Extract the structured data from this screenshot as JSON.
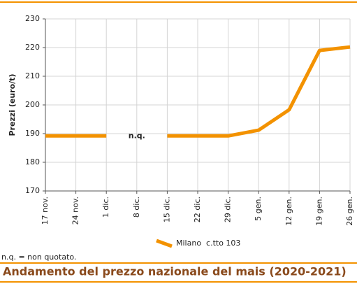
{
  "chart_data": {
    "type": "line",
    "title": "Andamento del prezzo nazionale del mais (2020-2021)",
    "y_label": "Prezzi (euro/t)",
    "note": "n.q. = non quotato.",
    "annotation": "n.q.",
    "categories": [
      "17 nov.",
      "24 nov.",
      "1 dic.",
      "8 dic.",
      "15 dic.",
      "22 dic.",
      "29 dic.",
      "5 gen.",
      "12 gen.",
      "19 gen.",
      "26 gen."
    ],
    "series": [
      {
        "name": "Milano  c.tto 103",
        "color": "#f39200",
        "values": [
          189.2,
          189.2,
          189.2,
          null,
          189.2,
          189.2,
          189.2,
          191.2,
          198.3,
          219,
          220.2
        ]
      }
    ],
    "ylim": [
      170,
      230
    ],
    "yticks": [
      170,
      180,
      190,
      200,
      210,
      220,
      230
    ],
    "grid": true
  }
}
